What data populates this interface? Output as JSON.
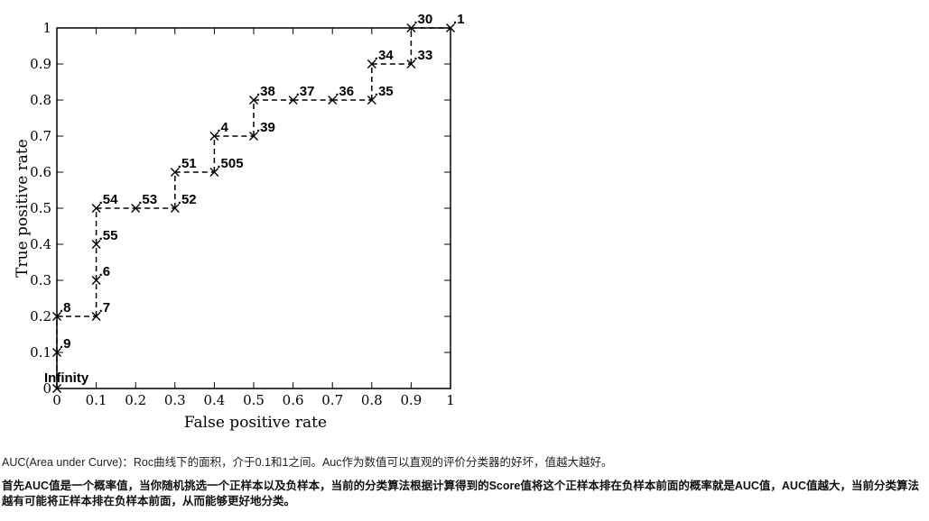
{
  "chart_data": {
    "type": "line",
    "xlabel": "False positive rate",
    "ylabel": "True positive rate",
    "xlim": [
      0,
      1
    ],
    "ylim": [
      0,
      1
    ],
    "xticks": [
      "0",
      "0.1",
      "0.2",
      "0.3",
      "0.4",
      "0.5",
      "0.6",
      "0.7",
      "0.8",
      "0.9",
      "1"
    ],
    "yticks": [
      "0",
      "0.1",
      "0.2",
      "0.3",
      "0.4",
      "0.5",
      "0.6",
      "0.7",
      "0.8",
      "0.9",
      "1"
    ],
    "grid": false,
    "marker": "x",
    "line_style": "dashed",
    "points": [
      {
        "x": 0.0,
        "y": 0.0,
        "label": "Infinity"
      },
      {
        "x": 0.0,
        "y": 0.1,
        "label": ".9"
      },
      {
        "x": 0.0,
        "y": 0.2,
        "label": ".8"
      },
      {
        "x": 0.1,
        "y": 0.2,
        "label": ".7"
      },
      {
        "x": 0.1,
        "y": 0.3,
        "label": ".6"
      },
      {
        "x": 0.1,
        "y": 0.4,
        "label": ".55"
      },
      {
        "x": 0.1,
        "y": 0.5,
        "label": ".54"
      },
      {
        "x": 0.2,
        "y": 0.5,
        "label": ".53"
      },
      {
        "x": 0.3,
        "y": 0.5,
        "label": ".52"
      },
      {
        "x": 0.3,
        "y": 0.6,
        "label": ".51"
      },
      {
        "x": 0.4,
        "y": 0.6,
        "label": ".505"
      },
      {
        "x": 0.4,
        "y": 0.7,
        "label": ".4"
      },
      {
        "x": 0.5,
        "y": 0.7,
        "label": ".39"
      },
      {
        "x": 0.5,
        "y": 0.8,
        "label": ".38"
      },
      {
        "x": 0.6,
        "y": 0.8,
        "label": ".37"
      },
      {
        "x": 0.7,
        "y": 0.8,
        "label": ".36"
      },
      {
        "x": 0.8,
        "y": 0.8,
        "label": ".35"
      },
      {
        "x": 0.8,
        "y": 0.9,
        "label": ".34"
      },
      {
        "x": 0.9,
        "y": 0.9,
        "label": ".33"
      },
      {
        "x": 0.9,
        "y": 1.0,
        "label": ".30"
      },
      {
        "x": 1.0,
        "y": 1.0,
        "label": ".1"
      }
    ]
  },
  "caption1": "AUC(Area under Curve)：Roc曲线下的面积，介于0.1和1之间。Auc作为数值可以直观的评价分类器的好坏，值越大越好。",
  "caption2": "首先AUC值是一个概率值，当你随机挑选一个正样本以及负样本，当前的分类算法根据计算得到的Score值将这个正样本排在负样本前面的概率就是AUC值，AUC值越大，当前分类算法越有可能将正样本排在负样本前面，从而能够更好地分类。"
}
